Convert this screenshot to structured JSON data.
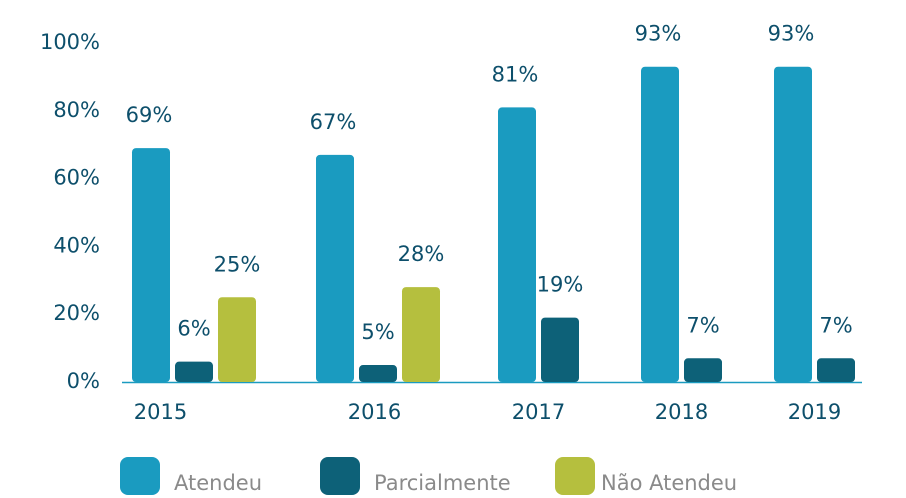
{
  "chart_data": {
    "type": "bar",
    "categories": [
      "2015",
      "2016",
      "2017",
      "2018",
      "2019"
    ],
    "series": [
      {
        "name": "Atendeu",
        "color": "#1a9bc0",
        "values": [
          69,
          67,
          81,
          93,
          93
        ],
        "value_labels": [
          "69%",
          "67%",
          "81%",
          "93%",
          "93%"
        ]
      },
      {
        "name": "Parcialmente",
        "color": "#0d6178",
        "values": [
          6,
          5,
          19,
          7,
          7
        ],
        "value_labels": [
          "6%",
          "5%",
          "19%",
          "7%",
          "7%"
        ]
      },
      {
        "name": "Não Atendeu",
        "color": "#b5bf3e",
        "values": [
          25,
          28,
          null,
          null,
          null
        ],
        "value_labels": [
          "25%",
          "28%",
          null,
          null,
          null
        ]
      }
    ],
    "ylim": [
      0,
      100
    ],
    "yticks": [
      {
        "value": 0,
        "label": "0%"
      },
      {
        "value": 20,
        "label": "20%"
      },
      {
        "value": 40,
        "label": "40%"
      },
      {
        "value": 60,
        "label": "60%"
      },
      {
        "value": 80,
        "label": "80%"
      },
      {
        "value": 100,
        "label": "100%"
      }
    ],
    "grid": false,
    "legend": "bottom"
  }
}
